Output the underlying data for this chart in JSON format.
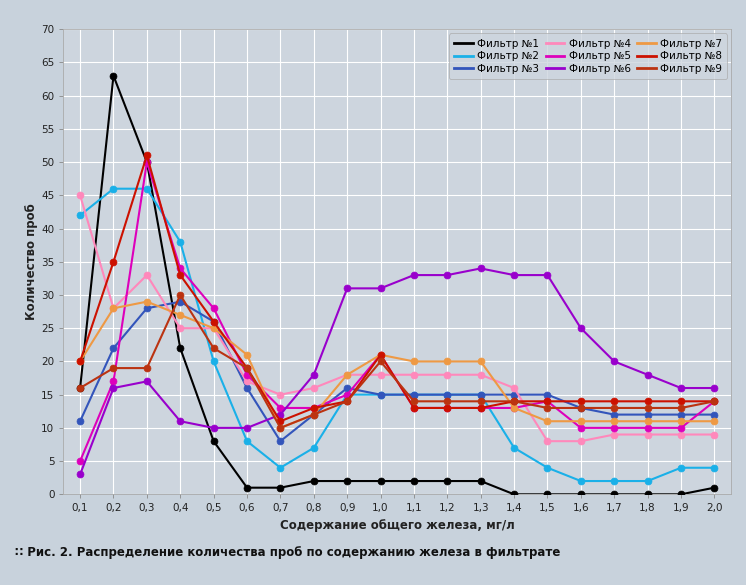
{
  "xlabel": "Содержание общего железа, мг/л",
  "ylabel": "Количество проб",
  "caption": "Рис. 2. Распределение количества проб по содержанию железа в фильтрате",
  "ylim": [
    0,
    70
  ],
  "xticks": [
    0.1,
    0.2,
    0.3,
    0.4,
    0.5,
    0.6,
    0.7,
    0.8,
    0.9,
    1.0,
    1.1,
    1.2,
    1.3,
    1.4,
    1.5,
    1.6,
    1.7,
    1.8,
    1.9,
    2.0
  ],
  "yticks": [
    0,
    5,
    10,
    15,
    20,
    25,
    30,
    35,
    40,
    45,
    50,
    55,
    60,
    65,
    70
  ],
  "fig_bg": "#c8d2dc",
  "plot_bg": "#cdd5de",
  "caption_bg": "#dce4ec",
  "grid_color": "#ffffff",
  "series": [
    {
      "label": "Фильтр №1",
      "color": "#000000",
      "x": [
        0.1,
        0.2,
        0.3,
        0.4,
        0.5,
        0.6,
        0.7,
        0.8,
        0.9,
        1.0,
        1.1,
        1.2,
        1.3,
        1.4,
        1.5,
        1.6,
        1.7,
        1.8,
        1.9,
        2.0
      ],
      "y": [
        16,
        63,
        50,
        22,
        8,
        1,
        1,
        2,
        2,
        2,
        2,
        2,
        2,
        0,
        0,
        0,
        0,
        0,
        0,
        1
      ]
    },
    {
      "label": "Фильтр №2",
      "color": "#1ab0e8",
      "x": [
        0.1,
        0.2,
        0.3,
        0.4,
        0.5,
        0.6,
        0.7,
        0.8,
        0.9,
        1.0,
        1.1,
        1.2,
        1.3,
        1.4,
        1.5,
        1.6,
        1.7,
        1.8,
        1.9,
        2.0
      ],
      "y": [
        42,
        46,
        46,
        38,
        20,
        8,
        4,
        7,
        15,
        15,
        15,
        15,
        15,
        7,
        4,
        2,
        2,
        2,
        4,
        4
      ]
    },
    {
      "label": "Фильтр №3",
      "color": "#3355bb",
      "x": [
        0.1,
        0.2,
        0.3,
        0.4,
        0.5,
        0.6,
        0.7,
        0.8,
        0.9,
        1.0,
        1.1,
        1.2,
        1.3,
        1.4,
        1.5,
        1.6,
        1.7,
        1.8,
        1.9,
        2.0
      ],
      "y": [
        11,
        22,
        28,
        29,
        26,
        16,
        8,
        12,
        16,
        15,
        15,
        15,
        15,
        15,
        15,
        13,
        12,
        12,
        12,
        12
      ]
    },
    {
      "label": "Фильтр №4",
      "color": "#ff88bb",
      "x": [
        0.1,
        0.2,
        0.3,
        0.4,
        0.5,
        0.6,
        0.7,
        0.8,
        0.9,
        1.0,
        1.1,
        1.2,
        1.3,
        1.4,
        1.5,
        1.6,
        1.7,
        1.8,
        1.9,
        2.0
      ],
      "y": [
        45,
        28,
        33,
        25,
        25,
        17,
        15,
        16,
        18,
        18,
        18,
        18,
        18,
        16,
        8,
        8,
        9,
        9,
        9,
        9
      ]
    },
    {
      "label": "Фильтр №5",
      "color": "#dd00bb",
      "x": [
        0.1,
        0.2,
        0.3,
        0.4,
        0.5,
        0.6,
        0.7,
        0.8,
        0.9,
        1.0,
        1.1,
        1.2,
        1.3,
        1.4,
        1.5,
        1.6,
        1.7,
        1.8,
        1.9,
        2.0
      ],
      "y": [
        5,
        17,
        50,
        34,
        28,
        18,
        13,
        13,
        15,
        21,
        13,
        13,
        13,
        13,
        14,
        10,
        10,
        10,
        10,
        14
      ]
    },
    {
      "label": "Фильтр №6",
      "color": "#9900cc",
      "x": [
        0.1,
        0.2,
        0.3,
        0.4,
        0.5,
        0.6,
        0.7,
        0.8,
        0.9,
        1.0,
        1.1,
        1.2,
        1.3,
        1.4,
        1.5,
        1.6,
        1.7,
        1.8,
        1.9,
        2.0
      ],
      "y": [
        3,
        16,
        17,
        11,
        10,
        10,
        12,
        18,
        31,
        31,
        33,
        33,
        34,
        33,
        33,
        25,
        20,
        18,
        16,
        16
      ]
    },
    {
      "label": "Фильтр №7",
      "color": "#ee9944",
      "x": [
        0.1,
        0.2,
        0.3,
        0.4,
        0.5,
        0.6,
        0.7,
        0.8,
        0.9,
        1.0,
        1.1,
        1.2,
        1.3,
        1.4,
        1.5,
        1.6,
        1.7,
        1.8,
        1.9,
        2.0
      ],
      "y": [
        20,
        28,
        29,
        27,
        25,
        21,
        10,
        12,
        18,
        21,
        20,
        20,
        20,
        13,
        11,
        11,
        11,
        11,
        11,
        11
      ]
    },
    {
      "label": "Фильтр №8",
      "color": "#cc1100",
      "x": [
        0.1,
        0.2,
        0.3,
        0.4,
        0.5,
        0.6,
        0.7,
        0.8,
        0.9,
        1.0,
        1.1,
        1.2,
        1.3,
        1.4,
        1.5,
        1.6,
        1.7,
        1.8,
        1.9,
        2.0
      ],
      "y": [
        20,
        35,
        51,
        33,
        26,
        19,
        11,
        13,
        14,
        21,
        13,
        13,
        13,
        14,
        14,
        14,
        14,
        14,
        14,
        14
      ]
    },
    {
      "label": "Фильтр №9",
      "color": "#bb3311",
      "x": [
        0.1,
        0.2,
        0.3,
        0.4,
        0.5,
        0.6,
        0.7,
        0.8,
        0.9,
        1.0,
        1.1,
        1.2,
        1.3,
        1.4,
        1.5,
        1.6,
        1.7,
        1.8,
        1.9,
        2.0
      ],
      "y": [
        16,
        19,
        19,
        30,
        22,
        19,
        10,
        12,
        14,
        20,
        14,
        14,
        14,
        14,
        13,
        13,
        13,
        13,
        13,
        14
      ]
    }
  ],
  "marker": "o",
  "markersize": 5,
  "linewidth": 1.5
}
